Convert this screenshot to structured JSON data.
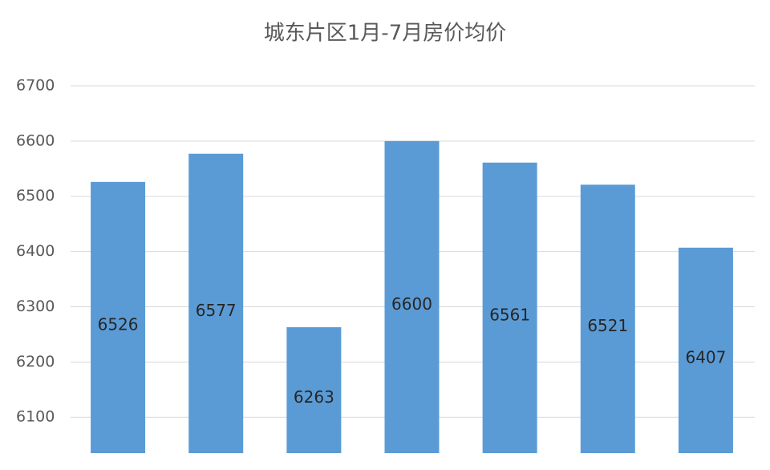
{
  "chart_data": {
    "type": "bar",
    "title": "城东片区1月-7月房价均价",
    "categories": [
      null,
      null,
      null,
      null,
      null,
      null,
      null
    ],
    "values": [
      6526,
      6577,
      6263,
      6600,
      6561,
      6521,
      6407
    ],
    "color": "#5b9bd5",
    "ylim": [
      6035,
      6700
    ],
    "yticks": [
      6100,
      6200,
      6300,
      6400,
      6500,
      6600,
      6700
    ],
    "grid": true
  }
}
